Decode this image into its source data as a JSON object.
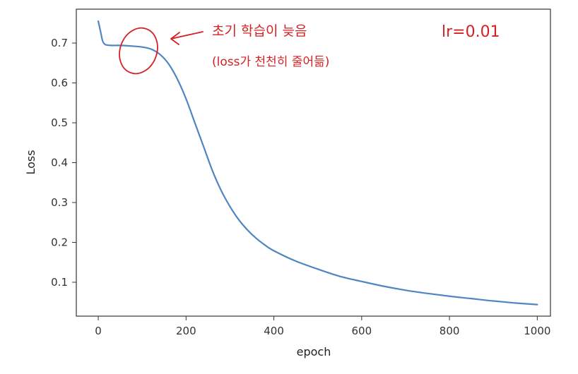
{
  "chart_data": {
    "type": "line",
    "title": "",
    "xlabel": "epoch",
    "ylabel": "Loss",
    "xlim": [
      -50,
      1030
    ],
    "ylim": [
      0.015,
      0.785
    ],
    "xticks": [
      0,
      200,
      400,
      600,
      800,
      1000
    ],
    "yticks": [
      0.1,
      0.2,
      0.3,
      0.4,
      0.5,
      0.6,
      0.7
    ],
    "grid": false,
    "legend": "none",
    "series": [
      {
        "color": "#4f86c1",
        "x": [
          0,
          5,
          10,
          15,
          20,
          30,
          50,
          70,
          100,
          120,
          140,
          160,
          180,
          200,
          220,
          240,
          260,
          280,
          300,
          320,
          340,
          360,
          380,
          400,
          450,
          500,
          550,
          600,
          650,
          700,
          750,
          800,
          850,
          900,
          950,
          1000
        ],
        "y": [
          0.755,
          0.73,
          0.705,
          0.697,
          0.695,
          0.694,
          0.694,
          0.693,
          0.69,
          0.685,
          0.672,
          0.648,
          0.61,
          0.56,
          0.5,
          0.44,
          0.38,
          0.33,
          0.29,
          0.257,
          0.231,
          0.21,
          0.193,
          0.179,
          0.153,
          0.133,
          0.115,
          0.102,
          0.09,
          0.08,
          0.072,
          0.065,
          0.059,
          0.053,
          0.048,
          0.044
        ]
      }
    ]
  },
  "annotations": {
    "note_line1": "초기 학습이 늦음",
    "note_line2": "(loss가 천천히 줄어듦)",
    "lr_note": "lr=0.01"
  }
}
